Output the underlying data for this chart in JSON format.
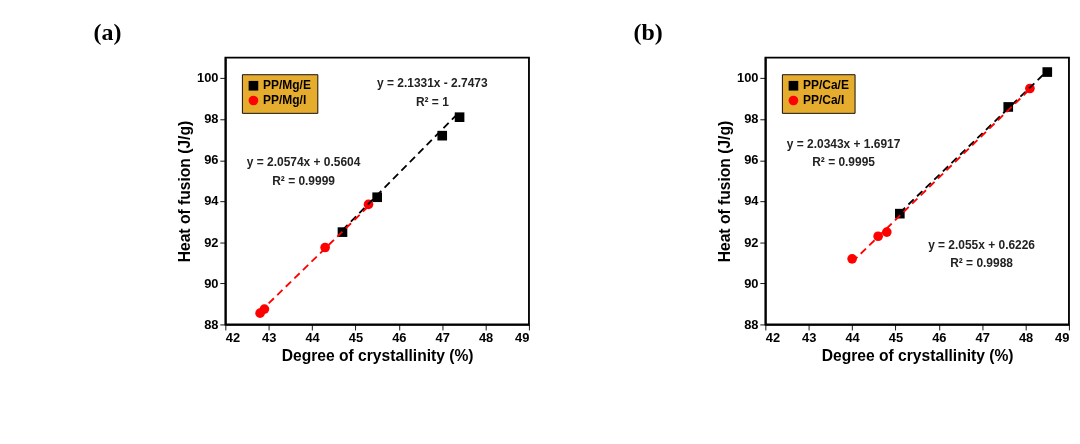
{
  "chart_data": [
    {
      "type": "scatter",
      "title": "(a)",
      "xlabel": "Degree of crystallinity (%)",
      "ylabel": "Heat of fusion (J/g)",
      "xlim": [
        42,
        49
      ],
      "ylim": [
        88,
        101
      ],
      "xticks": [
        42,
        43,
        44,
        45,
        46,
        47,
        48,
        49
      ],
      "yticks": [
        88,
        90,
        92,
        94,
        96,
        98,
        100
      ],
      "legend": "top left",
      "grid": false,
      "series": [
        {
          "name": "PP/Mg/E",
          "color": "#000000",
          "marker": "square",
          "x": [
            44.7,
            45.5,
            47.0,
            47.4
          ],
          "values": [
            92.5,
            94.2,
            97.2,
            98.1
          ]
        },
        {
          "name": "PP/Mg/I",
          "color": "#ff0000",
          "marker": "circle",
          "x": [
            42.8,
            42.9,
            44.3,
            45.3
          ],
          "values": [
            88.55,
            88.75,
            91.75,
            93.85
          ]
        },
        {
          "type": "line",
          "color": "#000000",
          "line_style": "dashed",
          "x": [
            44.7,
            47.4
          ],
          "values": [
            92.6,
            98.36
          ]
        },
        {
          "type": "line",
          "color": "#ff0000",
          "line_style": "dashed",
          "x": [
            42.8,
            45.3
          ],
          "values": [
            88.62,
            93.76
          ]
        }
      ],
      "annotations": [
        "y = 2.1331x - 2.7473",
        "R² = 1",
        "y = 2.0574x + 0.5604",
        "R² = 0.9999"
      ]
    },
    {
      "type": "scatter",
      "title": "(b)",
      "xlabel": "Degree of crystallinity (%)",
      "ylabel": "Heat of fusion (J/g)",
      "xlim": [
        42,
        49
      ],
      "ylim": [
        88,
        101
      ],
      "xticks": [
        42,
        43,
        44,
        45,
        46,
        47,
        48,
        49
      ],
      "yticks": [
        88,
        90,
        92,
        94,
        96,
        98,
        100
      ],
      "legend": "top left",
      "grid": false,
      "series": [
        {
          "name": "PP/Ca/E",
          "color": "#000000",
          "marker": "square",
          "x": [
            45.1,
            47.6,
            48.5
          ],
          "values": [
            93.4,
            98.6,
            100.3
          ]
        },
        {
          "name": "PP/Ca/I",
          "color": "#ff0000",
          "marker": "circle",
          "x": [
            44.0,
            44.6,
            44.8,
            48.1
          ],
          "values": [
            91.2,
            92.3,
            92.5,
            99.5
          ]
        },
        {
          "type": "line",
          "color": "#000000",
          "line_style": "dashed",
          "x": [
            45.1,
            48.5
          ],
          "values": [
            93.44,
            100.36
          ]
        },
        {
          "type": "line",
          "color": "#ff0000",
          "line_style": "dashed",
          "x": [
            44.0,
            48.1
          ],
          "values": [
            91.04,
            99.47
          ]
        }
      ],
      "annotations": [
        "y = 2.0343x + 1.6917",
        "R² = 0.9995",
        "y = 2.055x + 0.6226",
        "R² = 0.9988"
      ]
    }
  ]
}
